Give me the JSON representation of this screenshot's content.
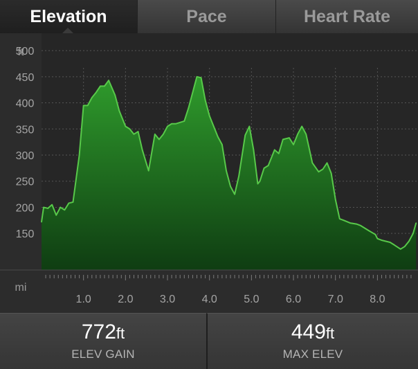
{
  "tabs": [
    {
      "label": "Elevation",
      "active": true
    },
    {
      "label": "Pace",
      "active": false
    },
    {
      "label": "Heart Rate",
      "active": false
    }
  ],
  "chart_data": {
    "type": "area",
    "y_unit": "ft",
    "x_unit": "mi",
    "y_ticks": [
      150,
      200,
      250,
      300,
      350,
      400,
      450,
      500
    ],
    "x_ticks": [
      1.0,
      2.0,
      3.0,
      4.0,
      5.0,
      6.0,
      7.0,
      8.0
    ],
    "xlim": [
      0,
      8.9
    ],
    "ylim": [
      80,
      520
    ],
    "grid": true,
    "x": [
      0.0,
      0.05,
      0.15,
      0.25,
      0.35,
      0.45,
      0.55,
      0.65,
      0.75,
      0.9,
      1.0,
      1.1,
      1.2,
      1.3,
      1.4,
      1.5,
      1.6,
      1.75,
      1.85,
      2.0,
      2.1,
      2.2,
      2.3,
      2.4,
      2.55,
      2.7,
      2.8,
      2.9,
      3.0,
      3.1,
      3.2,
      3.4,
      3.5,
      3.6,
      3.7,
      3.8,
      3.9,
      4.0,
      4.1,
      4.2,
      4.3,
      4.4,
      4.5,
      4.6,
      4.7,
      4.85,
      4.95,
      5.05,
      5.15,
      5.2,
      5.3,
      5.4,
      5.55,
      5.65,
      5.75,
      5.9,
      6.0,
      6.1,
      6.2,
      6.3,
      6.45,
      6.6,
      6.7,
      6.8,
      6.9,
      7.0,
      7.1,
      7.2,
      7.35,
      7.5,
      7.6,
      7.8,
      7.95,
      8.0,
      8.1,
      8.2,
      8.3,
      8.4,
      8.55,
      8.65,
      8.75,
      8.85,
      8.92
    ],
    "values": [
      172,
      200,
      198,
      205,
      185,
      200,
      195,
      208,
      210,
      300,
      395,
      395,
      410,
      420,
      432,
      432,
      443,
      415,
      385,
      355,
      350,
      340,
      345,
      310,
      270,
      340,
      330,
      340,
      355,
      360,
      360,
      365,
      390,
      420,
      450,
      448,
      405,
      375,
      355,
      335,
      320,
      270,
      240,
      225,
      260,
      338,
      355,
      310,
      245,
      250,
      275,
      280,
      310,
      303,
      330,
      333,
      320,
      340,
      355,
      340,
      285,
      268,
      273,
      285,
      265,
      215,
      178,
      175,
      170,
      168,
      165,
      155,
      148,
      140,
      137,
      135,
      133,
      128,
      120,
      125,
      135,
      150,
      170
    ]
  },
  "tiles": [
    {
      "value": "772",
      "unit": "ft",
      "label": "ELEV GAIN"
    },
    {
      "value": "449",
      "unit": "ft",
      "label": "MAX ELEV"
    }
  ],
  "colors": {
    "line": "#58c94a",
    "fill_top": "#2f9b2c",
    "fill_bottom": "#0f3d12",
    "grid": "#555555"
  }
}
